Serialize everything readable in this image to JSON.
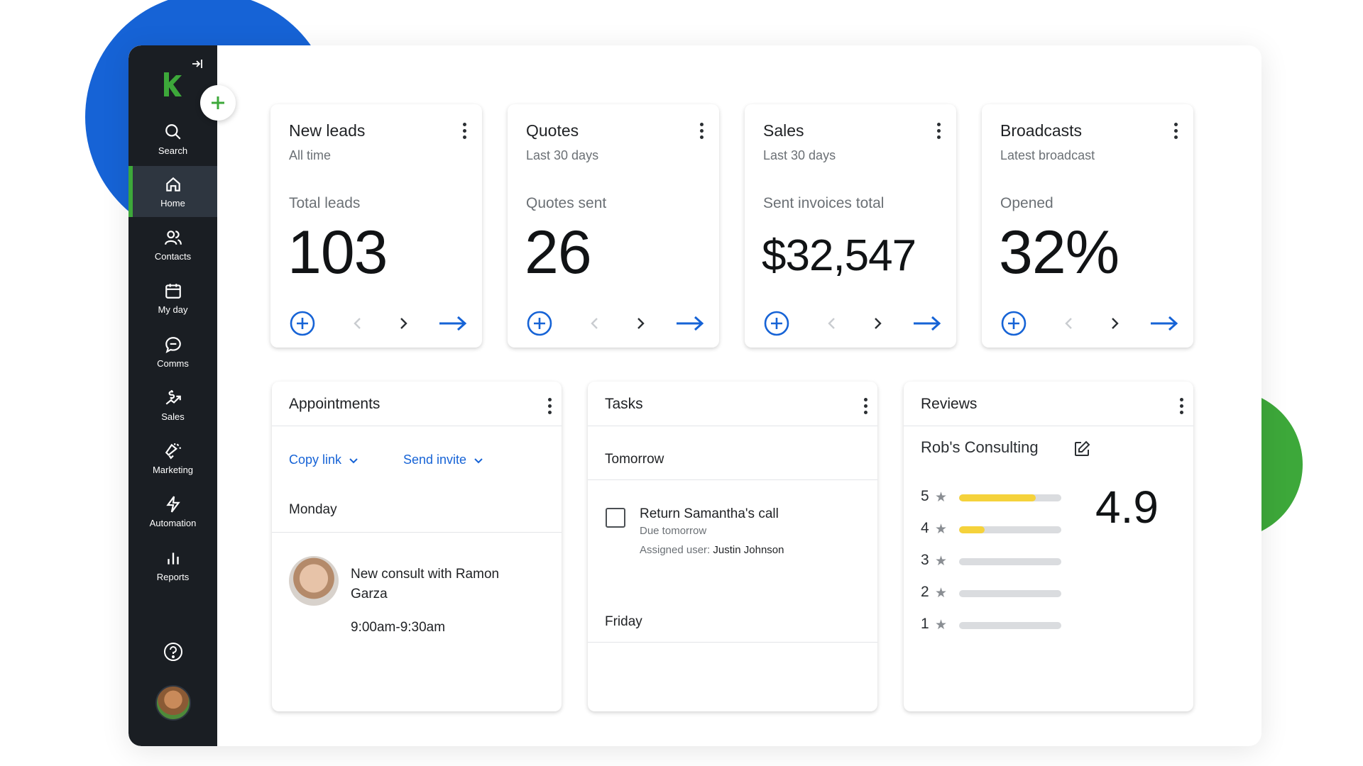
{
  "sidebar": {
    "items": [
      {
        "label": "Search",
        "icon": "search-icon"
      },
      {
        "label": "Home",
        "icon": "home-icon"
      },
      {
        "label": "Contacts",
        "icon": "contacts-icon"
      },
      {
        "label": "My day",
        "icon": "calendar-icon"
      },
      {
        "label": "Comms",
        "icon": "chat-icon"
      },
      {
        "label": "Sales",
        "icon": "sales-icon"
      },
      {
        "label": "Marketing",
        "icon": "megaphone-icon"
      },
      {
        "label": "Automation",
        "icon": "lightning-icon"
      },
      {
        "label": "Reports",
        "icon": "bar-chart-icon"
      }
    ],
    "active": "Home"
  },
  "metrics": [
    {
      "title": "New leads",
      "subtitle": "All time",
      "label": "Total leads",
      "value": "103"
    },
    {
      "title": "Quotes",
      "subtitle": "Last 30 days",
      "label": "Quotes sent",
      "value": "26"
    },
    {
      "title": "Sales",
      "subtitle": "Last 30 days",
      "label": "Sent invoices total",
      "value": "$32,547"
    },
    {
      "title": "Broadcasts",
      "subtitle": "Latest broadcast",
      "label": "Opened",
      "value": "32%"
    }
  ],
  "appointments": {
    "title": "Appointments",
    "copy_link": "Copy link",
    "send_invite": "Send invite",
    "day": "Monday",
    "item": {
      "title": "New consult with Ramon Garza",
      "time": "9:00am-9:30am"
    }
  },
  "tasks": {
    "title": "Tasks",
    "group1": "Tomorrow",
    "task": {
      "title": "Return Samantha's call",
      "due": "Due tomorrow",
      "assigned_label": "Assigned user:",
      "assigned_user": "Justin Johnson"
    },
    "group2": "Friday"
  },
  "reviews": {
    "title": "Reviews",
    "business": "Rob's Consulting",
    "rating": "4.9",
    "bars": [
      {
        "stars": "5",
        "fraction": 0.75
      },
      {
        "stars": "4",
        "fraction": 0.25
      },
      {
        "stars": "3",
        "fraction": 0
      },
      {
        "stars": "2",
        "fraction": 0
      },
      {
        "stars": "1",
        "fraction": 0
      }
    ]
  },
  "colors": {
    "accent": "#1663d6",
    "brand_green": "#3da83a",
    "sidebar": "#1a1e23",
    "star_fill": "#f5d23b"
  }
}
